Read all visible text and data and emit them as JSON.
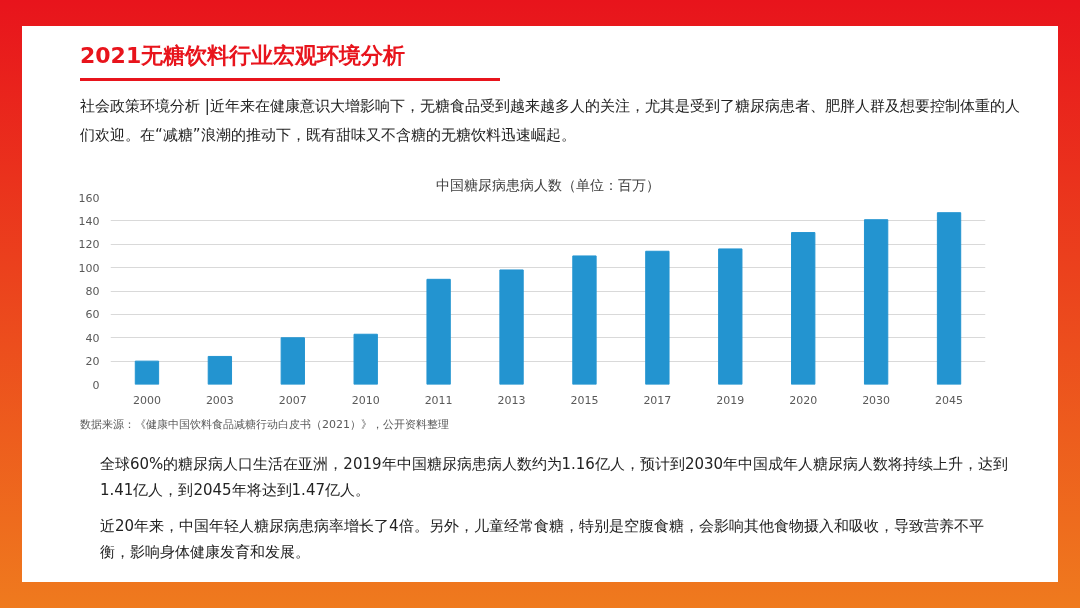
{
  "chart_data": {
    "type": "bar",
    "title": "2021无糖饮料行业宏观环境分析",
    "subtitle": "社会政策环境分析 |近年来在健康意识大增影响下，无糖食品受到越来越多人的关注，尤其是受到了糖尿病患者、肥胖人群及想要控制体重的人们欢迎。在“减糖”浪潮的推动下，既有甜味又不含糖的无糖饮料迅速崛起。",
    "ylabel": "中国糖尿病患病人数（单位：百万）",
    "categories": [
      "2000",
      "2003",
      "2007",
      "2010",
      "2011",
      "2013",
      "2015",
      "2017",
      "2019",
      "2020",
      "2030",
      "2045"
    ],
    "values": [
      20,
      24,
      40,
      43,
      90,
      98,
      110,
      114,
      116,
      130,
      141,
      147
    ],
    "color": "#2394d0",
    "ylim": [
      0,
      160
    ],
    "yticks": [
      0,
      20,
      40,
      60,
      80,
      100,
      120,
      140,
      160
    ],
    "grid": "y",
    "annotations": [
      "数据来源：《健康中国饮料食品减糖行动白皮书（2021）》，公开资料整理",
      "全球60%的糖尿病人口生活在亚洲，2019年中国糖尿病患病人数约为1.16亿人，预计到2030年中国成年人糖尿病人数将持续上升，达到1.41亿人，到2045年将达到1.47亿人。",
      "近20年来，中国年轻人糖尿病患病率增长了4倍。另外，儿童经常食糖，特别是空腹食糖，会影响其他食物摄入和吸收，导致营养不平衡，影响身体健康发育和发展。"
    ]
  }
}
